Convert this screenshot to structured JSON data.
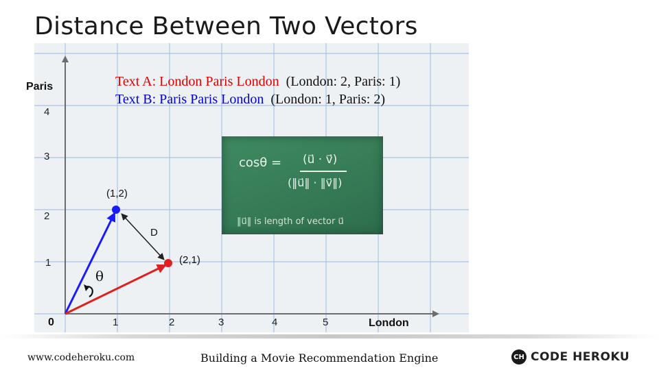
{
  "title": "Distance Between Two Vectors",
  "figure": {
    "y_axis_label": "Paris",
    "x_axis_label": "London",
    "origin_label": "0",
    "x_ticks": [
      "1",
      "2",
      "3",
      "4",
      "5"
    ],
    "y_ticks": [
      "1",
      "2",
      "3",
      "4"
    ],
    "point_a_label": "(1,2)",
    "point_b_label": "(2,1)",
    "distance_label": "D",
    "angle_label": "θ",
    "text_a_colored": "Text A: London Paris London",
    "text_a_counts": "(London: 2, Paris: 1)",
    "text_b_colored": "Text B: Paris Paris London",
    "text_b_counts": "(London: 1, Paris: 2)",
    "formula_lhs": "cosθ =",
    "formula_numerator": "(u⃗ · v⃗)",
    "formula_denominator": "(‖u⃗‖ · ‖v⃗‖)",
    "formula_note": "‖u⃗‖ is length of vector u⃗",
    "colors": {
      "text_a": "#e00000",
      "text_b": "#0000e0",
      "vector_a": "#e02020",
      "vector_b": "#1a1aff",
      "board": "#357a56"
    }
  },
  "footer": {
    "website": "www.codeheroku.com",
    "course": "Building a Movie Recommendation Engine",
    "brand_icon": "CH",
    "brand": "CODE HEROKU"
  }
}
